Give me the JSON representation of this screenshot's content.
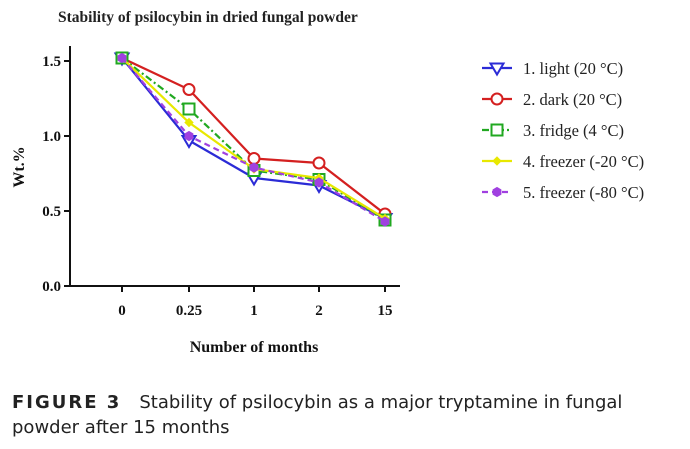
{
  "chart_data": {
    "type": "line",
    "title": "Stability of psilocybin in dried fungal powder",
    "xlabel": "Number of months",
    "ylabel": "Wt.%",
    "categories": [
      "0",
      "0.25",
      "1",
      "2",
      "15"
    ],
    "yticks": [
      "0.0",
      "0.5",
      "1.0",
      "1.5"
    ],
    "ylim": [
      0,
      1.6
    ],
    "legend_position": "right",
    "series": [
      {
        "name": "1. light (20 °C)",
        "values": [
          1.52,
          0.97,
          0.72,
          0.67,
          0.45
        ],
        "color": "#2b2bd6",
        "marker": "triangle-down",
        "dash": "solid"
      },
      {
        "name": "2. dark (20 °C)",
        "values": [
          1.52,
          1.31,
          0.85,
          0.82,
          0.48
        ],
        "color": "#d42020",
        "marker": "circle",
        "dash": "solid"
      },
      {
        "name": "3. fridge (4 °C)",
        "values": [
          1.52,
          1.18,
          0.77,
          0.71,
          0.44
        ],
        "color": "#21a821",
        "marker": "square",
        "dash": "dashdot"
      },
      {
        "name": "4. freezer (-20 °C)",
        "values": [
          1.52,
          1.09,
          0.78,
          0.72,
          0.45
        ],
        "color": "#e8e800",
        "marker": "diamond",
        "dash": "solid"
      },
      {
        "name": "5. freezer (-80 °C)",
        "values": [
          1.52,
          1.0,
          0.79,
          0.69,
          0.43
        ],
        "color": "#a040e0",
        "marker": "hexagon",
        "dash": "dashed"
      }
    ]
  },
  "caption": {
    "label": "FIGURE 3",
    "text": "Stability of psilocybin as a major tryptamine in fungal powder after 15 months"
  }
}
